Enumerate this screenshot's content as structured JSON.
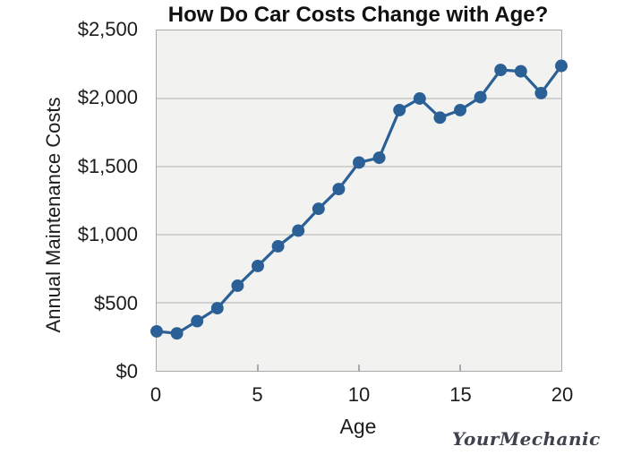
{
  "chart_data": {
    "type": "line",
    "title": "How Do Car Costs Change with Age?",
    "xlabel": "Age",
    "ylabel": "Annual Maintenance Costs",
    "x": [
      0,
      1,
      2,
      3,
      4,
      5,
      6,
      7,
      8,
      9,
      10,
      11,
      12,
      13,
      14,
      15,
      16,
      17,
      18,
      19,
      20
    ],
    "values": [
      290,
      275,
      365,
      460,
      625,
      770,
      915,
      1030,
      1190,
      1335,
      1530,
      1565,
      1915,
      2000,
      1860,
      1915,
      2010,
      2210,
      2200,
      2040,
      2240
    ],
    "xlim": [
      0,
      20
    ],
    "ylim": [
      0,
      2500
    ],
    "xticks": [
      0,
      5,
      10,
      15,
      20
    ],
    "yticks": [
      0,
      500,
      1000,
      1500,
      2000,
      2500
    ],
    "ytick_labels": [
      "$0",
      "$500",
      "$1,000",
      "$1,500",
      "$2,000",
      "$2,500"
    ],
    "grid": "horizontal",
    "legend": "none",
    "marker": "circle",
    "marker_radius": 7,
    "line_width": 3.2,
    "line_color": "#2a6096",
    "plot_bg": "#f2f2f0",
    "grid_color": "#c6c6c6",
    "border_color": "#a9a9a9",
    "tick_color": "#a9a9a9",
    "text_color": "#1c1c1c"
  },
  "footer": {
    "logo_text": "YourMechanic",
    "logo_color": "#3d424e"
  }
}
